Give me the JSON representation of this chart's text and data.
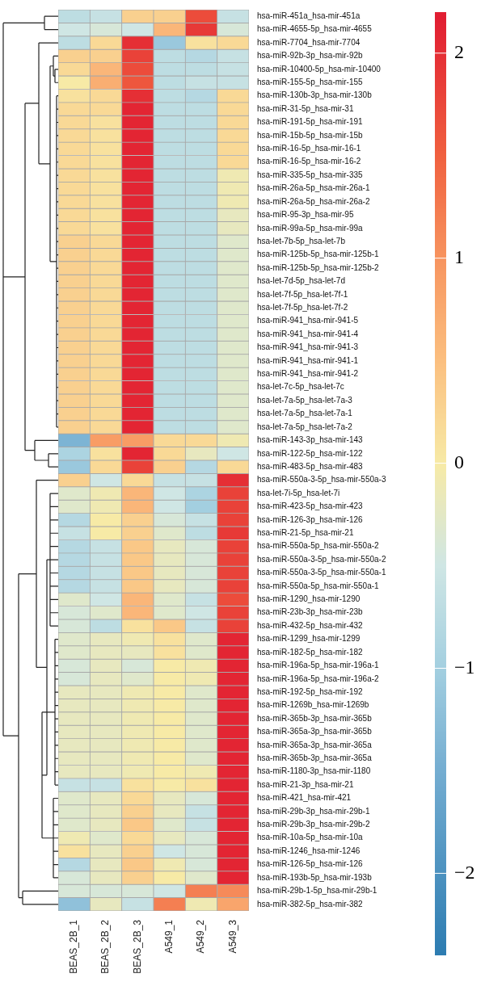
{
  "chart_data": {
    "type": "heatmap",
    "categories": [
      "BEAS_2B_1",
      "BEAS_2B_2",
      "BEAS_2B_3",
      "A549_1",
      "A549_2",
      "A549_3"
    ],
    "y_categories": [
      "hsa-miR-451a_hsa-mir-451a",
      "hsa-miR-4655-5p_hsa-mir-4655",
      "hsa-miR-7704_hsa-mir-7704",
      "hsa-miR-92b-3p_hsa-mir-92b",
      "hsa-miR-10400-5p_hsa-mir-10400",
      "hsa-miR-155-5p_hsa-mir-155",
      "hsa-miR-130b-3p_hsa-mir-130b",
      "hsa-miR-31-5p_hsa-mir-31",
      "hsa-miR-191-5p_hsa-mir-191",
      "hsa-miR-15b-5p_hsa-mir-15b",
      "hsa-miR-16-5p_hsa-mir-16-1",
      "hsa-miR-16-5p_hsa-mir-16-2",
      "hsa-miR-335-5p_hsa-mir-335",
      "hsa-miR-26a-5p_hsa-mir-26a-1",
      "hsa-miR-26a-5p_hsa-mir-26a-2",
      "hsa-miR-95-3p_hsa-mir-95",
      "hsa-miR-99a-5p_hsa-mir-99a",
      "hsa-let-7b-5p_hsa-let-7b",
      "hsa-miR-125b-5p_hsa-mir-125b-1",
      "hsa-miR-125b-5p_hsa-mir-125b-2",
      "hsa-let-7d-5p_hsa-let-7d",
      "hsa-let-7f-5p_hsa-let-7f-1",
      "hsa-let-7f-5p_hsa-let-7f-2",
      "hsa-miR-941_hsa-mir-941-5",
      "hsa-miR-941_hsa-mir-941-4",
      "hsa-miR-941_hsa-mir-941-3",
      "hsa-miR-941_hsa-mir-941-1",
      "hsa-miR-941_hsa-mir-941-2",
      "hsa-let-7c-5p_hsa-let-7c",
      "hsa-let-7a-5p_hsa-let-7a-3",
      "hsa-let-7a-5p_hsa-let-7a-1",
      "hsa-let-7a-5p_hsa-let-7a-2",
      "hsa-miR-143-3p_hsa-mir-143",
      "hsa-miR-122-5p_hsa-mir-122",
      "hsa-miR-483-5p_hsa-mir-483",
      "hsa-miR-550a-3-5p_hsa-mir-550a-3",
      "hsa-let-7i-5p_hsa-let-7i",
      "hsa-miR-423-5p_hsa-mir-423",
      "hsa-miR-126-3p_hsa-mir-126",
      "hsa-miR-21-5p_hsa-mir-21",
      "hsa-miR-550a-5p_hsa-mir-550a-2",
      "hsa-miR-550a-3-5p_hsa-mir-550a-2",
      "hsa-miR-550a-3-5p_hsa-mir-550a-1",
      "hsa-miR-550a-5p_hsa-mir-550a-1",
      "hsa-miR-1290_hsa-mir-1290",
      "hsa-miR-23b-3p_hsa-mir-23b",
      "hsa-miR-432-5p_hsa-mir-432",
      "hsa-miR-1299_hsa-mir-1299",
      "hsa-miR-182-5p_hsa-mir-182",
      "hsa-miR-196a-5p_hsa-mir-196a-1",
      "hsa-miR-196a-5p_hsa-mir-196a-2",
      "hsa-miR-192-5p_hsa-mir-192",
      "hsa-miR-1269b_hsa-mir-1269b",
      "hsa-miR-365b-3p_hsa-mir-365b",
      "hsa-miR-365a-3p_hsa-mir-365b",
      "hsa-miR-365a-3p_hsa-mir-365a",
      "hsa-miR-365b-3p_hsa-mir-365a",
      "hsa-miR-1180-3p_hsa-mir-1180",
      "hsa-miR-21-3p_hsa-mir-21",
      "hsa-miR-421_hsa-mir-421",
      "hsa-miR-29b-3p_hsa-mir-29b-1",
      "hsa-miR-29b-3p_hsa-mir-29b-2",
      "hsa-miR-10a-5p_hsa-mir-10a",
      "hsa-miR-1246_hsa-mir-1246",
      "hsa-miR-126-5p_hsa-mir-126",
      "hsa-miR-193b-5p_hsa-mir-193b",
      "hsa-miR-29b-1-5p_hsa-mir-29b-1",
      "hsa-miR-382-5p_hsa-mir-382"
    ],
    "cells": [
      [
        -0.7,
        -0.6,
        0.3,
        0.3,
        1.7,
        -0.6
      ],
      [
        -0.5,
        -0.4,
        -0.5,
        0.6,
        1.9,
        -0.4
      ],
      [
        -0.7,
        0.2,
        2.0,
        -1.1,
        0.1,
        0.2
      ],
      [
        0.3,
        0.3,
        1.8,
        -0.7,
        -0.8,
        -0.6
      ],
      [
        0.2,
        0.6,
        1.7,
        -0.7,
        -0.7,
        -0.6
      ],
      [
        0.0,
        0.7,
        1.6,
        -0.7,
        -0.6,
        -0.6
      ],
      [
        0.1,
        0.2,
        2.0,
        -0.7,
        -0.8,
        0.2
      ],
      [
        0.2,
        0.2,
        2.1,
        -0.7,
        -0.7,
        0.2
      ],
      [
        0.2,
        0.1,
        2.1,
        -0.7,
        -0.7,
        0.2
      ],
      [
        0.2,
        0.1,
        2.1,
        -0.7,
        -0.7,
        0.2
      ],
      [
        0.2,
        0.1,
        2.1,
        -0.7,
        -0.7,
        0.2
      ],
      [
        0.2,
        0.1,
        2.1,
        -0.7,
        -0.7,
        0.2
      ],
      [
        0.2,
        0.1,
        2.1,
        -0.7,
        -0.7,
        -0.1
      ],
      [
        0.2,
        0.1,
        2.1,
        -0.7,
        -0.7,
        -0.1
      ],
      [
        0.2,
        0.1,
        2.1,
        -0.7,
        -0.7,
        -0.1
      ],
      [
        0.2,
        0.1,
        2.1,
        -0.7,
        -0.7,
        -0.2
      ],
      [
        0.2,
        0.1,
        2.1,
        -0.7,
        -0.7,
        -0.2
      ],
      [
        0.3,
        0.2,
        2.1,
        -0.7,
        -0.7,
        -0.3
      ],
      [
        0.3,
        0.2,
        2.1,
        -0.7,
        -0.7,
        -0.3
      ],
      [
        0.3,
        0.2,
        2.1,
        -0.7,
        -0.7,
        -0.3
      ],
      [
        0.3,
        0.2,
        2.1,
        -0.7,
        -0.7,
        -0.3
      ],
      [
        0.3,
        0.2,
        2.1,
        -0.7,
        -0.7,
        -0.3
      ],
      [
        0.3,
        0.2,
        2.1,
        -0.7,
        -0.7,
        -0.3
      ],
      [
        0.3,
        0.2,
        2.1,
        -0.7,
        -0.7,
        -0.3
      ],
      [
        0.3,
        0.2,
        2.1,
        -0.7,
        -0.7,
        -0.3
      ],
      [
        0.3,
        0.2,
        2.1,
        -0.7,
        -0.7,
        -0.3
      ],
      [
        0.3,
        0.2,
        2.1,
        -0.7,
        -0.7,
        -0.3
      ],
      [
        0.3,
        0.2,
        2.1,
        -0.7,
        -0.7,
        -0.3
      ],
      [
        0.3,
        0.2,
        2.1,
        -0.7,
        -0.7,
        -0.3
      ],
      [
        0.3,
        0.2,
        2.1,
        -0.7,
        -0.7,
        -0.3
      ],
      [
        0.3,
        0.2,
        2.1,
        -0.7,
        -0.7,
        -0.3
      ],
      [
        0.3,
        0.2,
        2.1,
        -0.7,
        -0.7,
        -0.3
      ],
      [
        -1.4,
        0.9,
        0.9,
        0.2,
        0.2,
        -0.1
      ],
      [
        -0.9,
        0.1,
        2.1,
        0.2,
        -0.2,
        -0.5
      ],
      [
        -1.1,
        0.2,
        1.8,
        0.3,
        -0.8,
        0.2
      ],
      [
        0.3,
        -0.5,
        0.2,
        -0.6,
        -0.6,
        2.0
      ],
      [
        -0.3,
        -0.1,
        0.6,
        -0.5,
        -0.9,
        1.8
      ],
      [
        -0.3,
        -0.1,
        0.6,
        -0.5,
        -1.0,
        1.8
      ],
      [
        -0.8,
        0.0,
        0.3,
        -0.4,
        -0.6,
        1.8
      ],
      [
        -0.6,
        0.0,
        0.3,
        -0.3,
        -0.7,
        1.9
      ],
      [
        -0.8,
        -0.6,
        0.4,
        -0.2,
        -0.4,
        1.8
      ],
      [
        -0.8,
        -0.6,
        0.4,
        -0.2,
        -0.4,
        1.8
      ],
      [
        -0.8,
        -0.6,
        0.4,
        -0.2,
        -0.4,
        1.8
      ],
      [
        -0.8,
        -0.6,
        0.4,
        -0.2,
        -0.4,
        1.8
      ],
      [
        -0.3,
        -0.5,
        0.6,
        -0.3,
        -0.6,
        1.7
      ],
      [
        -0.4,
        -0.3,
        0.6,
        -0.3,
        -0.5,
        1.8
      ],
      [
        -0.4,
        -0.7,
        0.1,
        0.4,
        -0.6,
        1.8
      ],
      [
        -0.3,
        -0.2,
        -0.1,
        0.1,
        -0.3,
        2.1
      ],
      [
        -0.3,
        -0.2,
        -0.2,
        0.1,
        -0.3,
        2.1
      ],
      [
        -0.4,
        -0.2,
        -0.4,
        0.0,
        -0.1,
        2.1
      ],
      [
        -0.4,
        -0.2,
        -0.3,
        0.0,
        -0.1,
        2.1
      ],
      [
        -0.2,
        -0.2,
        -0.1,
        0.0,
        -0.3,
        2.1
      ],
      [
        -0.2,
        -0.2,
        -0.1,
        0.0,
        -0.3,
        2.1
      ],
      [
        -0.2,
        -0.2,
        -0.1,
        0.0,
        -0.3,
        2.1
      ],
      [
        -0.2,
        -0.2,
        -0.1,
        0.0,
        -0.3,
        2.1
      ],
      [
        -0.2,
        -0.2,
        -0.1,
        0.0,
        -0.3,
        2.1
      ],
      [
        -0.2,
        -0.2,
        -0.1,
        0.0,
        -0.3,
        2.1
      ],
      [
        -0.2,
        -0.2,
        -0.1,
        0.0,
        -0.1,
        2.1
      ],
      [
        -0.6,
        -0.6,
        0.1,
        0.0,
        0.1,
        2.1
      ],
      [
        -0.3,
        -0.2,
        0.2,
        -0.2,
        -0.4,
        2.1
      ],
      [
        -0.3,
        -0.2,
        0.3,
        -0.2,
        -0.6,
        2.1
      ],
      [
        -0.3,
        -0.2,
        0.4,
        -0.3,
        -0.6,
        2.1
      ],
      [
        -0.1,
        -0.3,
        0.2,
        -0.2,
        -0.4,
        2.1
      ],
      [
        0.1,
        -0.2,
        0.3,
        -0.5,
        -0.4,
        2.1
      ],
      [
        -0.8,
        -0.2,
        0.4,
        -0.1,
        -0.4,
        2.1
      ],
      [
        -0.4,
        -0.2,
        0.3,
        0.0,
        -0.3,
        2.1
      ],
      [
        -0.4,
        -0.4,
        -0.4,
        -0.5,
        1.2,
        1.1
      ],
      [
        -1.2,
        -0.2,
        -0.6,
        1.2,
        -0.1,
        0.8
      ]
    ],
    "clim": [
      -2.4,
      2.2
    ],
    "cticks": [
      -2,
      -1,
      0,
      1,
      2
    ],
    "legend": false
  }
}
